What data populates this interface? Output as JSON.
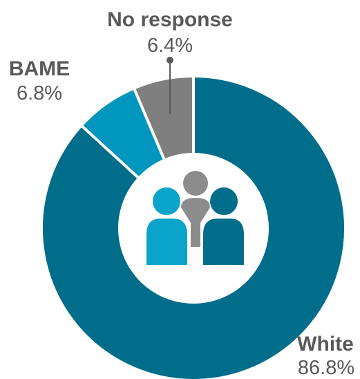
{
  "chart_data": {
    "type": "pie",
    "subtype": "donut",
    "unit": "%",
    "series": [
      {
        "name": "White",
        "value": 86.8,
        "display": "86.8%",
        "color": "#006e8a"
      },
      {
        "name": "BAME",
        "value": 6.8,
        "display": "6.8%",
        "color": "#0096bd"
      },
      {
        "name": "No response",
        "value": 6.4,
        "display": "6.4%",
        "color": "#7f7f7f"
      }
    ],
    "center_icon": "people-group-icon",
    "legend": "none"
  }
}
